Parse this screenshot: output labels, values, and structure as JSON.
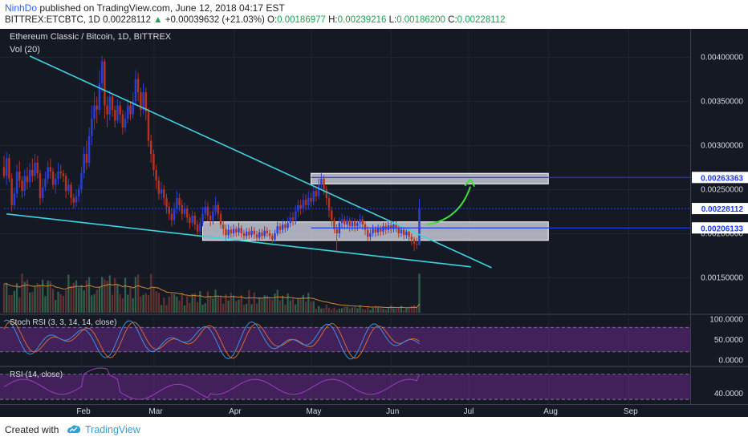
{
  "header": {
    "author": "NinhDo",
    "published_text": " published on TradingView.com, June 12, 2018 04:17 EST",
    "symbol": "BITTREX:ETCBTC, 1D",
    "last": "0.00228112",
    "change": "+0.00039632 (+21.03%)",
    "o_label": "O:",
    "o_val": "0.00186977",
    "h_label": "H:",
    "h_val": "0.00239216",
    "l_label": "L:",
    "l_val": "0.00186200",
    "c_label": "C:",
    "c_val": "0.00228112"
  },
  "footer": {
    "created": "Created with",
    "brand": "TradingView"
  },
  "colors": {
    "bg": "#151924",
    "up": "#2b3fd6",
    "down": "#b8331f",
    "trend": "#3fd3e0",
    "zone": "#d6d8e4",
    "blue_line": "#1a37ff",
    "ema": "#d0853a",
    "stoch_k": "#3e8fe0",
    "stoch_d": "#d06a35",
    "rsi": "#9e3cc2",
    "arrow": "#3ee03a",
    "band": "#7a2c9e"
  },
  "chart_data": {
    "type": "candlestick",
    "title": "Ethereum Classic / Bitcoin, 1D, BITTREX",
    "volume_label": "Vol (20)",
    "x_labels": [
      "Feb",
      "Mar",
      "Apr",
      "May",
      "Jun",
      "Jul",
      "Aug",
      "Sep"
    ],
    "y_ticks": [
      "0.00400000",
      "0.00350000",
      "0.00300000",
      "0.00250000",
      "0.00200000",
      "0.00150000"
    ],
    "y_tick_values": [
      0.004,
      0.0035,
      0.003,
      0.0025,
      0.002,
      0.0015
    ],
    "price_labels": [
      "0.00263363",
      "0.00228112",
      "0.00206133"
    ],
    "price_label_values": [
      0.00263363,
      0.00228112,
      0.00206133
    ],
    "x_range": [
      "2018-01-02",
      "2018-09-25"
    ],
    "y_range": [
      0.0011,
      0.0043
    ],
    "trendlines": [
      {
        "start": [
          "2018-01-12",
          0.00401
        ],
        "end": [
          "2018-07-10",
          0.00161
        ]
      },
      {
        "start": [
          "2018-01-03",
          0.00222
        ],
        "end": [
          "2018-07-02",
          0.00162
        ]
      }
    ],
    "zones": [
      {
        "from_date": "2018-05-01",
        "to_date": "2018-08-01",
        "low": 0.00256,
        "high": 0.00268
      },
      {
        "from_date": "2018-03-20",
        "to_date": "2018-08-01",
        "low": 0.00192,
        "high": 0.00213
      }
    ],
    "candles": [
      [
        "2018-01-02",
        0.00275,
        0.00265,
        0.00288,
        0.00262
      ],
      [
        "2018-01-03",
        0.00265,
        0.00285,
        0.00292,
        0.00255
      ],
      [
        "2018-01-04",
        0.00285,
        0.00262,
        0.0029,
        0.00258
      ],
      [
        "2018-01-05",
        0.00262,
        0.00232,
        0.00268,
        0.00225
      ],
      [
        "2018-01-06",
        0.00232,
        0.00245,
        0.00252,
        0.00228
      ],
      [
        "2018-01-07",
        0.00245,
        0.0027,
        0.00278,
        0.0024
      ],
      [
        "2018-01-08",
        0.0027,
        0.0026,
        0.00282,
        0.00252
      ],
      [
        "2018-01-09",
        0.0026,
        0.00248,
        0.00265,
        0.0024
      ],
      [
        "2018-01-10",
        0.00248,
        0.00265,
        0.00272,
        0.00242
      ],
      [
        "2018-01-11",
        0.00265,
        0.00258,
        0.00275,
        0.0025
      ],
      [
        "2018-01-12",
        0.00258,
        0.00272,
        0.0028,
        0.00252
      ],
      [
        "2018-01-13",
        0.00272,
        0.00265,
        0.00285,
        0.00258
      ],
      [
        "2018-01-14",
        0.00265,
        0.0028,
        0.0029,
        0.0026
      ],
      [
        "2018-01-15",
        0.0028,
        0.00268,
        0.00288,
        0.00262
      ],
      [
        "2018-01-16",
        0.00268,
        0.0024,
        0.00272,
        0.00232
      ],
      [
        "2018-01-17",
        0.0024,
        0.00252,
        0.00262,
        0.00235
      ],
      [
        "2018-01-18",
        0.00252,
        0.00262,
        0.0027,
        0.00248
      ],
      [
        "2018-01-19",
        0.00262,
        0.00275,
        0.00282,
        0.00256
      ],
      [
        "2018-01-20",
        0.00275,
        0.0027,
        0.00285,
        0.00262
      ],
      [
        "2018-01-21",
        0.0027,
        0.00255,
        0.00274,
        0.0025
      ],
      [
        "2018-01-22",
        0.00255,
        0.00262,
        0.00268,
        0.00245
      ],
      [
        "2018-01-23",
        0.00262,
        0.0027,
        0.0028,
        0.00255
      ],
      [
        "2018-01-24",
        0.0027,
        0.00268,
        0.00278,
        0.00262
      ],
      [
        "2018-01-25",
        0.00268,
        0.00265,
        0.00272,
        0.00258
      ],
      [
        "2018-01-26",
        0.00265,
        0.00248,
        0.00268,
        0.0024
      ],
      [
        "2018-01-27",
        0.00248,
        0.00255,
        0.00262,
        0.00244
      ],
      [
        "2018-01-28",
        0.00255,
        0.0024,
        0.00258,
        0.00232
      ],
      [
        "2018-01-29",
        0.0024,
        0.00235,
        0.00245,
        0.00228
      ],
      [
        "2018-01-30",
        0.00235,
        0.00242,
        0.0025,
        0.0023
      ],
      [
        "2018-01-31",
        0.00242,
        0.0025,
        0.00255,
        0.00236
      ],
      [
        "2018-02-01",
        0.0025,
        0.00268,
        0.00275,
        0.00245
      ],
      [
        "2018-02-02",
        0.00268,
        0.0029,
        0.00298,
        0.00262
      ],
      [
        "2018-02-03",
        0.0029,
        0.0028,
        0.00305,
        0.00272
      ],
      [
        "2018-02-04",
        0.0028,
        0.0031,
        0.0032,
        0.00275
      ],
      [
        "2018-02-05",
        0.0031,
        0.0033,
        0.00345,
        0.003
      ],
      [
        "2018-02-06",
        0.0033,
        0.00345,
        0.0036,
        0.00318
      ],
      [
        "2018-02-07",
        0.00345,
        0.0034,
        0.00355,
        0.00325
      ],
      [
        "2018-02-08",
        0.0034,
        0.0037,
        0.00385,
        0.00335
      ],
      [
        "2018-02-09",
        0.0037,
        0.00395,
        0.00401,
        0.0036
      ],
      [
        "2018-02-10",
        0.00395,
        0.00345,
        0.00398,
        0.0033
      ],
      [
        "2018-02-11",
        0.00345,
        0.00335,
        0.00355,
        0.0032
      ],
      [
        "2018-02-12",
        0.00335,
        0.00355,
        0.00362,
        0.00328
      ],
      [
        "2018-02-13",
        0.00355,
        0.0034,
        0.00358,
        0.00332
      ],
      [
        "2018-02-14",
        0.0034,
        0.00328,
        0.00345,
        0.0032
      ],
      [
        "2018-02-15",
        0.00328,
        0.00345,
        0.00352,
        0.00325
      ],
      [
        "2018-02-16",
        0.00345,
        0.00335,
        0.0035,
        0.00325
      ],
      [
        "2018-02-17",
        0.00335,
        0.0032,
        0.0034,
        0.00312
      ],
      [
        "2018-02-18",
        0.0032,
        0.0033,
        0.00338,
        0.00315
      ],
      [
        "2018-02-19",
        0.0033,
        0.00345,
        0.00352,
        0.00325
      ],
      [
        "2018-02-20",
        0.00345,
        0.00335,
        0.0035,
        0.00328
      ],
      [
        "2018-02-21",
        0.00335,
        0.0035,
        0.0036,
        0.0033
      ],
      [
        "2018-02-22",
        0.0035,
        0.00375,
        0.00385,
        0.00345
      ],
      [
        "2018-02-23",
        0.00375,
        0.0036,
        0.00382,
        0.0035
      ],
      [
        "2018-02-24",
        0.0036,
        0.0034,
        0.00365,
        0.00332
      ],
      [
        "2018-02-25",
        0.0034,
        0.0036,
        0.0037,
        0.00335
      ],
      [
        "2018-02-26",
        0.0036,
        0.00338,
        0.00365,
        0.00328
      ],
      [
        "2018-02-27",
        0.00338,
        0.00305,
        0.00342,
        0.00298
      ],
      [
        "2018-02-28",
        0.00305,
        0.0029,
        0.00312,
        0.0028
      ],
      [
        "2018-03-01",
        0.0029,
        0.00272,
        0.00295,
        0.00265
      ],
      [
        "2018-03-02",
        0.00272,
        0.0026,
        0.00278,
        0.0025
      ],
      [
        "2018-03-03",
        0.0026,
        0.00245,
        0.00265,
        0.00238
      ],
      [
        "2018-03-04",
        0.00245,
        0.0025,
        0.00258,
        0.00238
      ],
      [
        "2018-03-05",
        0.0025,
        0.0024,
        0.00255,
        0.00232
      ],
      [
        "2018-03-06",
        0.0024,
        0.0023,
        0.00245,
        0.00222
      ],
      [
        "2018-03-07",
        0.0023,
        0.00222,
        0.00235,
        0.00215
      ],
      [
        "2018-03-08",
        0.00222,
        0.00215,
        0.00228,
        0.00208
      ],
      [
        "2018-03-09",
        0.00215,
        0.00228,
        0.00235,
        0.0021
      ],
      [
        "2018-03-10",
        0.00228,
        0.0024,
        0.00248,
        0.00222
      ],
      [
        "2018-03-11",
        0.0024,
        0.00232,
        0.00245,
        0.00225
      ],
      [
        "2018-03-12",
        0.00232,
        0.00222,
        0.00238,
        0.00215
      ],
      [
        "2018-03-13",
        0.00222,
        0.00228,
        0.00235,
        0.00218
      ],
      [
        "2018-03-14",
        0.00228,
        0.00218,
        0.00232,
        0.00212
      ],
      [
        "2018-03-15",
        0.00218,
        0.00212,
        0.00222,
        0.00205
      ],
      [
        "2018-03-16",
        0.00212,
        0.0022,
        0.00226,
        0.00208
      ],
      [
        "2018-03-17",
        0.0022,
        0.0021,
        0.00224,
        0.00204
      ],
      [
        "2018-03-18",
        0.0021,
        0.00202,
        0.00215,
        0.00196
      ],
      [
        "2018-03-19",
        0.00202,
        0.00212,
        0.00218,
        0.00198
      ],
      [
        "2018-03-20",
        0.00212,
        0.00222,
        0.0023,
        0.00208
      ],
      [
        "2018-03-21",
        0.00222,
        0.0023,
        0.00238,
        0.00216
      ],
      [
        "2018-03-22",
        0.0023,
        0.0022,
        0.00235,
        0.00214
      ],
      [
        "2018-03-23",
        0.0022,
        0.00215,
        0.00225,
        0.00208
      ],
      [
        "2018-03-24",
        0.00215,
        0.00225,
        0.00232,
        0.0021
      ],
      [
        "2018-03-25",
        0.00225,
        0.00232,
        0.00242,
        0.0022
      ],
      [
        "2018-03-26",
        0.00232,
        0.00222,
        0.00236,
        0.00216
      ],
      [
        "2018-03-27",
        0.00222,
        0.0021,
        0.00226,
        0.00205
      ],
      [
        "2018-03-28",
        0.0021,
        0.00205,
        0.00214,
        0.00198
      ],
      [
        "2018-03-29",
        0.00205,
        0.00198,
        0.0021,
        0.00192
      ],
      [
        "2018-03-30",
        0.00198,
        0.00204,
        0.0021,
        0.00193
      ],
      [
        "2018-03-31",
        0.00204,
        0.002,
        0.00208,
        0.00195
      ],
      [
        "2018-04-01",
        0.002,
        0.00205,
        0.0021,
        0.00196
      ],
      [
        "2018-04-02",
        0.00205,
        0.00201,
        0.00208,
        0.00196
      ],
      [
        "2018-04-03",
        0.00201,
        0.00206,
        0.00212,
        0.00197
      ],
      [
        "2018-04-04",
        0.00206,
        0.002,
        0.00209,
        0.00195
      ],
      [
        "2018-04-05",
        0.002,
        0.00197,
        0.00204,
        0.00193
      ],
      [
        "2018-04-06",
        0.00197,
        0.00202,
        0.00206,
        0.00193
      ],
      [
        "2018-04-07",
        0.00202,
        0.00198,
        0.00206,
        0.00194
      ],
      [
        "2018-04-08",
        0.00198,
        0.00203,
        0.00208,
        0.00195
      ],
      [
        "2018-04-09",
        0.00203,
        0.00199,
        0.00207,
        0.00194
      ],
      [
        "2018-04-10",
        0.00199,
        0.00195,
        0.00203,
        0.00191
      ],
      [
        "2018-04-11",
        0.00195,
        0.00201,
        0.00205,
        0.00192
      ],
      [
        "2018-04-12",
        0.00201,
        0.00197,
        0.00205,
        0.00193
      ],
      [
        "2018-04-13",
        0.00197,
        0.00203,
        0.00208,
        0.00194
      ],
      [
        "2018-04-14",
        0.00203,
        0.002,
        0.00207,
        0.00196
      ],
      [
        "2018-04-15",
        0.002,
        0.00197,
        0.00204,
        0.00193
      ],
      [
        "2018-04-16",
        0.00197,
        0.00193,
        0.002,
        0.00189
      ],
      [
        "2018-04-17",
        0.00193,
        0.002,
        0.00204,
        0.0019
      ],
      [
        "2018-04-18",
        0.002,
        0.00208,
        0.00213,
        0.00197
      ],
      [
        "2018-04-19",
        0.00208,
        0.00204,
        0.00212,
        0.00199
      ],
      [
        "2018-04-20",
        0.00204,
        0.0021,
        0.00216,
        0.002
      ],
      [
        "2018-04-21",
        0.0021,
        0.00206,
        0.00214,
        0.00201
      ],
      [
        "2018-04-22",
        0.00206,
        0.00212,
        0.00218,
        0.00203
      ],
      [
        "2018-04-23",
        0.00212,
        0.00218,
        0.00224,
        0.00207
      ],
      [
        "2018-04-24",
        0.00218,
        0.00215,
        0.00224,
        0.00209
      ],
      [
        "2018-04-25",
        0.00215,
        0.00225,
        0.00232,
        0.0021
      ],
      [
        "2018-04-26",
        0.00225,
        0.00232,
        0.00238,
        0.00218
      ],
      [
        "2018-04-27",
        0.00232,
        0.00228,
        0.00238,
        0.00221
      ],
      [
        "2018-04-28",
        0.00228,
        0.00238,
        0.00245,
        0.00223
      ],
      [
        "2018-04-29",
        0.00238,
        0.00232,
        0.00244,
        0.00226
      ],
      [
        "2018-04-30",
        0.00232,
        0.0024,
        0.00248,
        0.00227
      ],
      [
        "2018-05-01",
        0.0024,
        0.00236,
        0.00246,
        0.0023
      ],
      [
        "2018-05-02",
        0.00236,
        0.00248,
        0.00254,
        0.00232
      ],
      [
        "2018-05-03",
        0.00248,
        0.00242,
        0.00254,
        0.00236
      ],
      [
        "2018-05-04",
        0.00242,
        0.00255,
        0.00262,
        0.00238
      ],
      [
        "2018-05-05",
        0.00255,
        0.00262,
        0.00268,
        0.0025
      ],
      [
        "2018-05-06",
        0.00262,
        0.0025,
        0.00266,
        0.00244
      ],
      [
        "2018-05-07",
        0.0025,
        0.0024,
        0.00254,
        0.00232
      ],
      [
        "2018-05-08",
        0.0024,
        0.00226,
        0.00244,
        0.00218
      ],
      [
        "2018-05-09",
        0.00226,
        0.00215,
        0.0023,
        0.00208
      ],
      [
        "2018-05-10",
        0.00215,
        0.00205,
        0.00218,
        0.002
      ],
      [
        "2018-05-11",
        0.00205,
        0.002,
        0.0021,
        0.0018
      ],
      [
        "2018-05-12",
        0.002,
        0.00212,
        0.00218,
        0.00195
      ],
      [
        "2018-05-13",
        0.00212,
        0.00216,
        0.00222,
        0.00205
      ],
      [
        "2018-05-14",
        0.00216,
        0.0021,
        0.0022,
        0.00204
      ],
      [
        "2018-05-15",
        0.0021,
        0.00215,
        0.0022,
        0.00205
      ],
      [
        "2018-05-16",
        0.00215,
        0.00208,
        0.00218,
        0.00202
      ],
      [
        "2018-05-17",
        0.00208,
        0.00213,
        0.00218,
        0.00203
      ],
      [
        "2018-05-18",
        0.00213,
        0.00208,
        0.00217,
        0.00202
      ],
      [
        "2018-05-19",
        0.00208,
        0.00212,
        0.00216,
        0.00203
      ],
      [
        "2018-05-20",
        0.00212,
        0.00216,
        0.00222,
        0.00206
      ],
      [
        "2018-05-21",
        0.00216,
        0.0021,
        0.0022,
        0.00204
      ],
      [
        "2018-05-22",
        0.0021,
        0.00204,
        0.00213,
        0.00198
      ],
      [
        "2018-05-23",
        0.00204,
        0.00196,
        0.00208,
        0.00191
      ],
      [
        "2018-05-24",
        0.00196,
        0.002,
        0.00205,
        0.00192
      ],
      [
        "2018-05-25",
        0.002,
        0.00205,
        0.0021,
        0.00196
      ],
      [
        "2018-05-26",
        0.00205,
        0.00201,
        0.00208,
        0.00196
      ],
      [
        "2018-05-27",
        0.00201,
        0.00206,
        0.0021,
        0.00197
      ],
      [
        "2018-05-28",
        0.00206,
        0.00202,
        0.00209,
        0.00197
      ],
      [
        "2018-05-29",
        0.00202,
        0.00208,
        0.00212,
        0.00198
      ],
      [
        "2018-05-30",
        0.00208,
        0.00204,
        0.00212,
        0.00199
      ],
      [
        "2018-05-31",
        0.00204,
        0.00209,
        0.00214,
        0.002
      ],
      [
        "2018-06-01",
        0.00209,
        0.00205,
        0.00213,
        0.002
      ],
      [
        "2018-06-02",
        0.00205,
        0.0021,
        0.00214,
        0.00201
      ],
      [
        "2018-06-03",
        0.0021,
        0.00206,
        0.00214,
        0.00201
      ],
      [
        "2018-06-04",
        0.00206,
        0.002,
        0.00209,
        0.00195
      ],
      [
        "2018-06-05",
        0.002,
        0.00204,
        0.00208,
        0.00196
      ],
      [
        "2018-06-06",
        0.00204,
        0.00198,
        0.00207,
        0.00193
      ],
      [
        "2018-06-07",
        0.00198,
        0.00202,
        0.00206,
        0.00194
      ],
      [
        "2018-06-08",
        0.00202,
        0.00196,
        0.00205,
        0.00191
      ],
      [
        "2018-06-09",
        0.00196,
        0.00193,
        0.002,
        0.00186
      ],
      [
        "2018-06-10",
        0.00193,
        0.00188,
        0.00196,
        0.0018
      ],
      [
        "2018-06-11",
        0.00188,
        0.00187,
        0.00195,
        0.00182
      ],
      [
        "2018-06-12",
        0.00187,
        0.00228,
        0.00239,
        0.00186
      ]
    ],
    "stoch_rsi": {
      "label": "Stoch RSI (3, 3, 14, 14, close)",
      "ticks": [
        "100.0000",
        "50.0000",
        "0.0000"
      ],
      "tick_values": [
        100,
        50,
        0
      ],
      "band": [
        20,
        80
      ]
    },
    "rsi": {
      "label": "RSI (14, close)",
      "ticks": [
        "40.0000"
      ],
      "tick_values": [
        40
      ],
      "band": [
        30,
        70
      ],
      "range": [
        25,
        80
      ]
    }
  }
}
